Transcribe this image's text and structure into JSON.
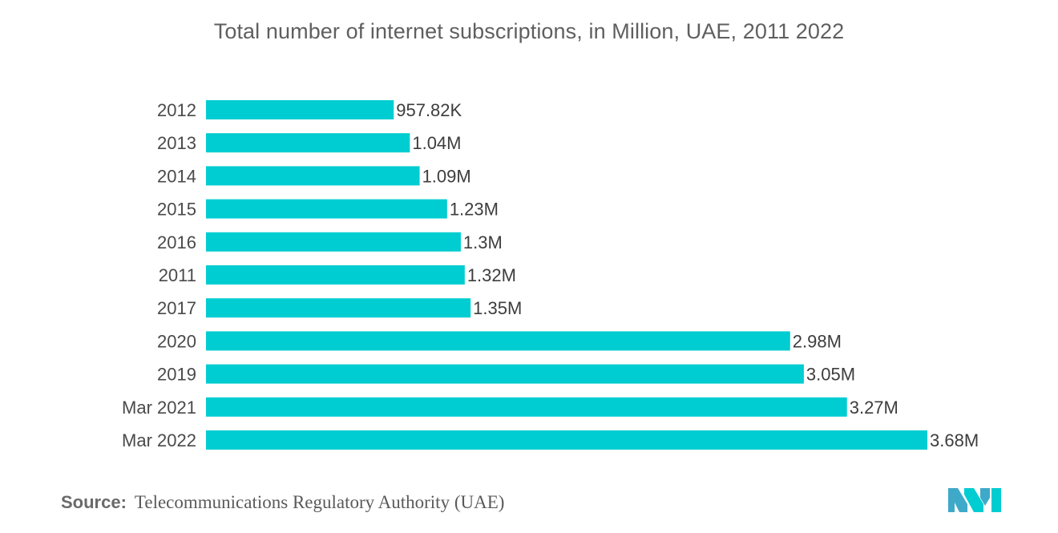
{
  "chart_data": {
    "type": "bar",
    "orientation": "horizontal",
    "title": "Total number of internet subscriptions, in Million, UAE, 2011  2022",
    "categories": [
      "2012",
      "2013",
      "2014",
      "2015",
      "2016",
      "2011",
      "2017",
      "2020",
      "2019",
      "Mar 2021",
      "Mar 2022"
    ],
    "values": [
      0.95782,
      1.04,
      1.09,
      1.23,
      1.3,
      1.32,
      1.35,
      2.98,
      3.05,
      3.27,
      3.68
    ],
    "value_labels": [
      "957.82K",
      "1.04M",
      "1.09M",
      "1.23M",
      "1.3M",
      "1.32M",
      "1.35M",
      "2.98M",
      "3.05M",
      "3.27M",
      "3.68M"
    ],
    "xlim": [
      0,
      3.68
    ],
    "grid": false,
    "legend": "none",
    "bar_color": "#00cdd1"
  },
  "footer": {
    "source_key": "Source:",
    "source_value": "Telecommunications Regulatory Authority (UAE)"
  },
  "logo": {
    "icon": "mordor-intelligence-logo",
    "colors": [
      "#3fa9c9",
      "#00cdd1"
    ]
  }
}
